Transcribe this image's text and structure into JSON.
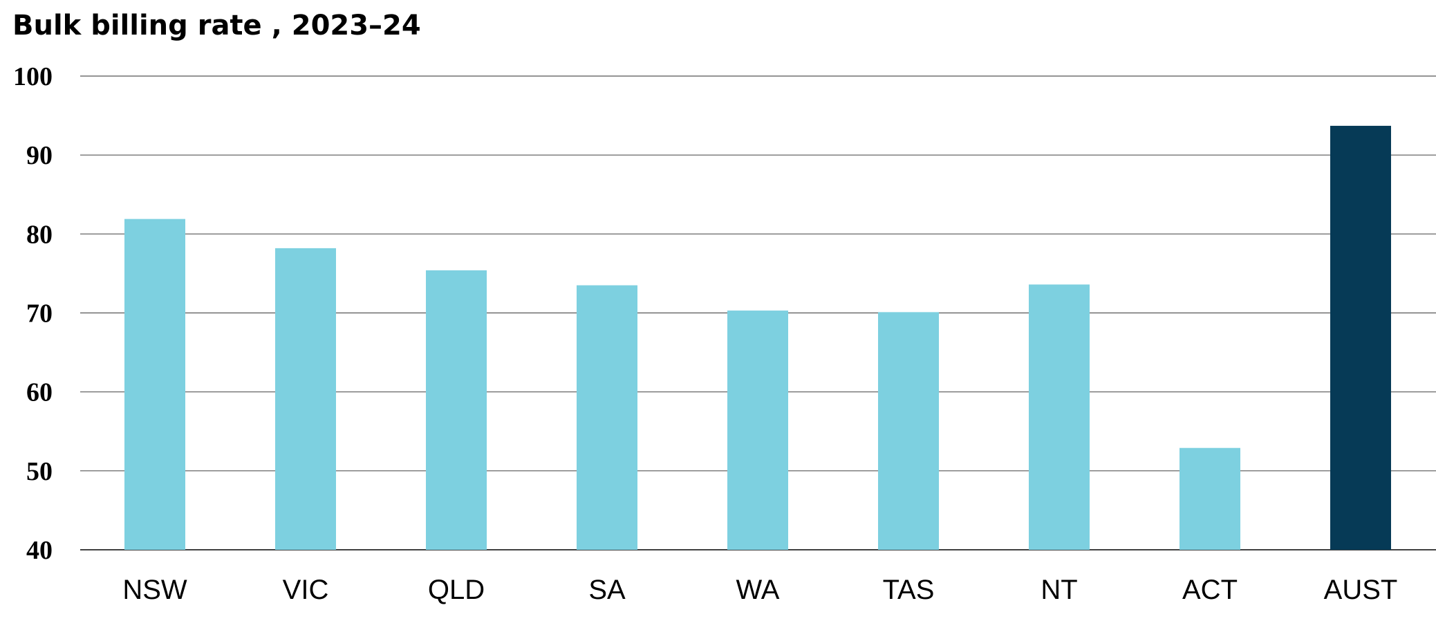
{
  "chart_data": {
    "type": "bar",
    "title": "Bulk billing rate , 2023–24",
    "xlabel": "",
    "ylabel": "",
    "categories": [
      "NSW",
      "VIC",
      "QLD",
      "SA",
      "WA",
      "TAS",
      "NT",
      "ACT",
      "AUST"
    ],
    "values": [
      81.9,
      78.2,
      75.4,
      73.5,
      70.3,
      70.1,
      73.6,
      52.9,
      93.7
    ],
    "ylim": [
      40,
      100
    ],
    "yticks": [
      40,
      50,
      60,
      70,
      80,
      90,
      100
    ],
    "grid": true,
    "legend": "none",
    "colors": {
      "bar": "#7dd0e0",
      "highlight": "#063a56",
      "grid": "#555555",
      "axis": "#000000"
    },
    "highlight_category": "AUST"
  }
}
